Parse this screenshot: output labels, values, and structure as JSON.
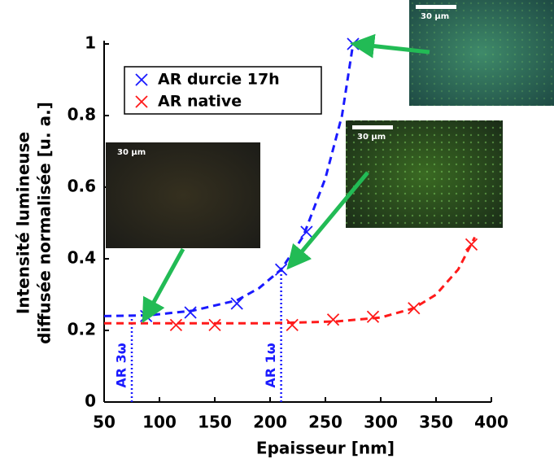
{
  "chart_data": {
    "type": "scatter",
    "xlabel": "Epaisseur [nm]",
    "ylabel": [
      "Intensité lumineuse",
      "diffusée normalisée [u. a.]"
    ],
    "xlim": [
      50,
      400
    ],
    "xticks": [
      50,
      100,
      150,
      200,
      250,
      300,
      350,
      400
    ],
    "ylim": [
      0,
      1
    ],
    "yticks": [
      0,
      0.2,
      0.4,
      0.6,
      0.8,
      1
    ],
    "legend": "upper left",
    "series": [
      {
        "name": "AR durcie 17h",
        "color": "#1a1aff",
        "x": [
          88,
          128,
          170,
          210,
          233,
          275
        ],
        "values": [
          0.24,
          0.25,
          0.275,
          0.37,
          0.475,
          1.0
        ],
        "fit_x": [
          50,
          90,
          130,
          170,
          190,
          210,
          230,
          250,
          265,
          275
        ],
        "fit_values": [
          0.24,
          0.242,
          0.255,
          0.284,
          0.318,
          0.37,
          0.463,
          0.625,
          0.8,
          1.0
        ]
      },
      {
        "name": "AR native",
        "color": "#ff1a1a",
        "x": [
          115,
          150,
          220,
          257,
          293,
          330,
          382
        ],
        "values": [
          0.215,
          0.215,
          0.215,
          0.23,
          0.238,
          0.262,
          0.44
        ],
        "fit_x": [
          50,
          200,
          260,
          300,
          330,
          350,
          370,
          385
        ],
        "fit_values": [
          0.22,
          0.22,
          0.225,
          0.236,
          0.262,
          0.3,
          0.37,
          0.46
        ]
      }
    ],
    "annotations": [
      {
        "text": "AR 3ω",
        "x": 75,
        "y": 0.24
      },
      {
        "text": "AR 1ω",
        "x": 210,
        "y": 0.37
      }
    ],
    "insets": [
      {
        "label": "30 µm"
      },
      {
        "label": "30 µm"
      },
      {
        "label": "30 µm"
      }
    ]
  }
}
